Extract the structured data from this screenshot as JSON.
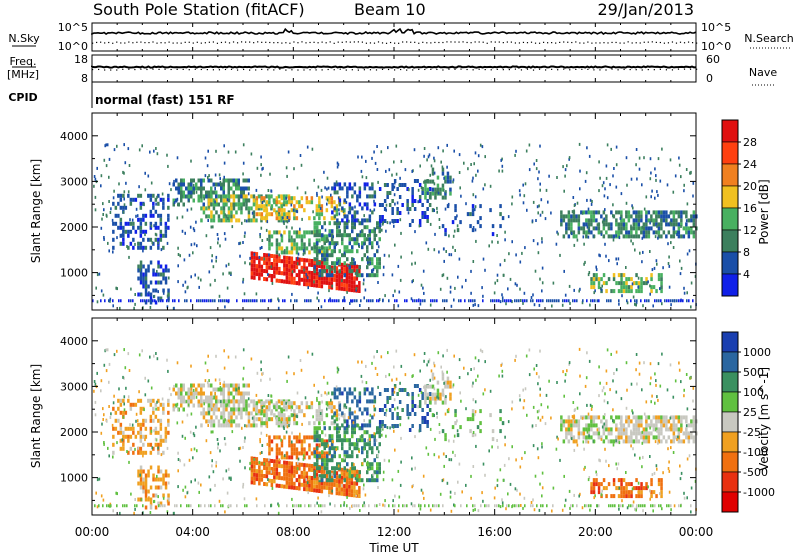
{
  "header": {
    "station": "South Pole Station (fitACF)",
    "beam": "Beam 10",
    "date": "29/Jan/2013"
  },
  "side_labels": {
    "nsky": "N.Sky",
    "nsearch": "N.Search",
    "freq": "Freq.",
    "freq_unit": "[MHz]",
    "nave": "Nave",
    "cpid": "CPID"
  },
  "cpid_text": "normal (fast) 151 RF",
  "ticks": {
    "noise_top": "10^5",
    "noise_bottom": "10^0",
    "freq_top": "18",
    "freq_bottom": "8",
    "nave_top": "60",
    "nave_bottom": "0"
  },
  "chart_data": {
    "type": "heatmap",
    "x_axis": {
      "label": "Time UT",
      "ticks": [
        "00:00",
        "04:00",
        "08:00",
        "12:00",
        "16:00",
        "20:00",
        "00:00"
      ]
    },
    "y_axis": {
      "label": "Slant Range [km]",
      "ticks": [
        "1000",
        "2000",
        "3000",
        "4000"
      ],
      "range": [
        180,
        4500
      ]
    },
    "panels": [
      {
        "name": "power",
        "colorbar_label": "Power [dB]",
        "colorbar_ticks": [
          "4",
          "8",
          "12",
          "16",
          "20",
          "24",
          "28"
        ],
        "colors": [
          "#1020e8",
          "#1a4fa8",
          "#3c7f5e",
          "#48b060",
          "#f0c020",
          "#f08020",
          "#ff4010",
          "#e01010"
        ]
      },
      {
        "name": "velocity",
        "colorbar_label": "Velocity [m s^-1]",
        "colorbar_ticks": [
          "1000",
          "500",
          "100",
          "25",
          "-25",
          "-100",
          "-500",
          "-1000"
        ],
        "colors": [
          "#1a3fb0",
          "#2a66a0",
          "#3a9060",
          "#60c040",
          "#c8c8c0",
          "#f0a020",
          "#f07010",
          "#e83010",
          "#e00000"
        ]
      }
    ],
    "noise_series": {
      "n_sky_level": 10000,
      "n_search_level": 200
    },
    "freq_series": {
      "freq_mhz": 12,
      "nave": 30
    }
  }
}
